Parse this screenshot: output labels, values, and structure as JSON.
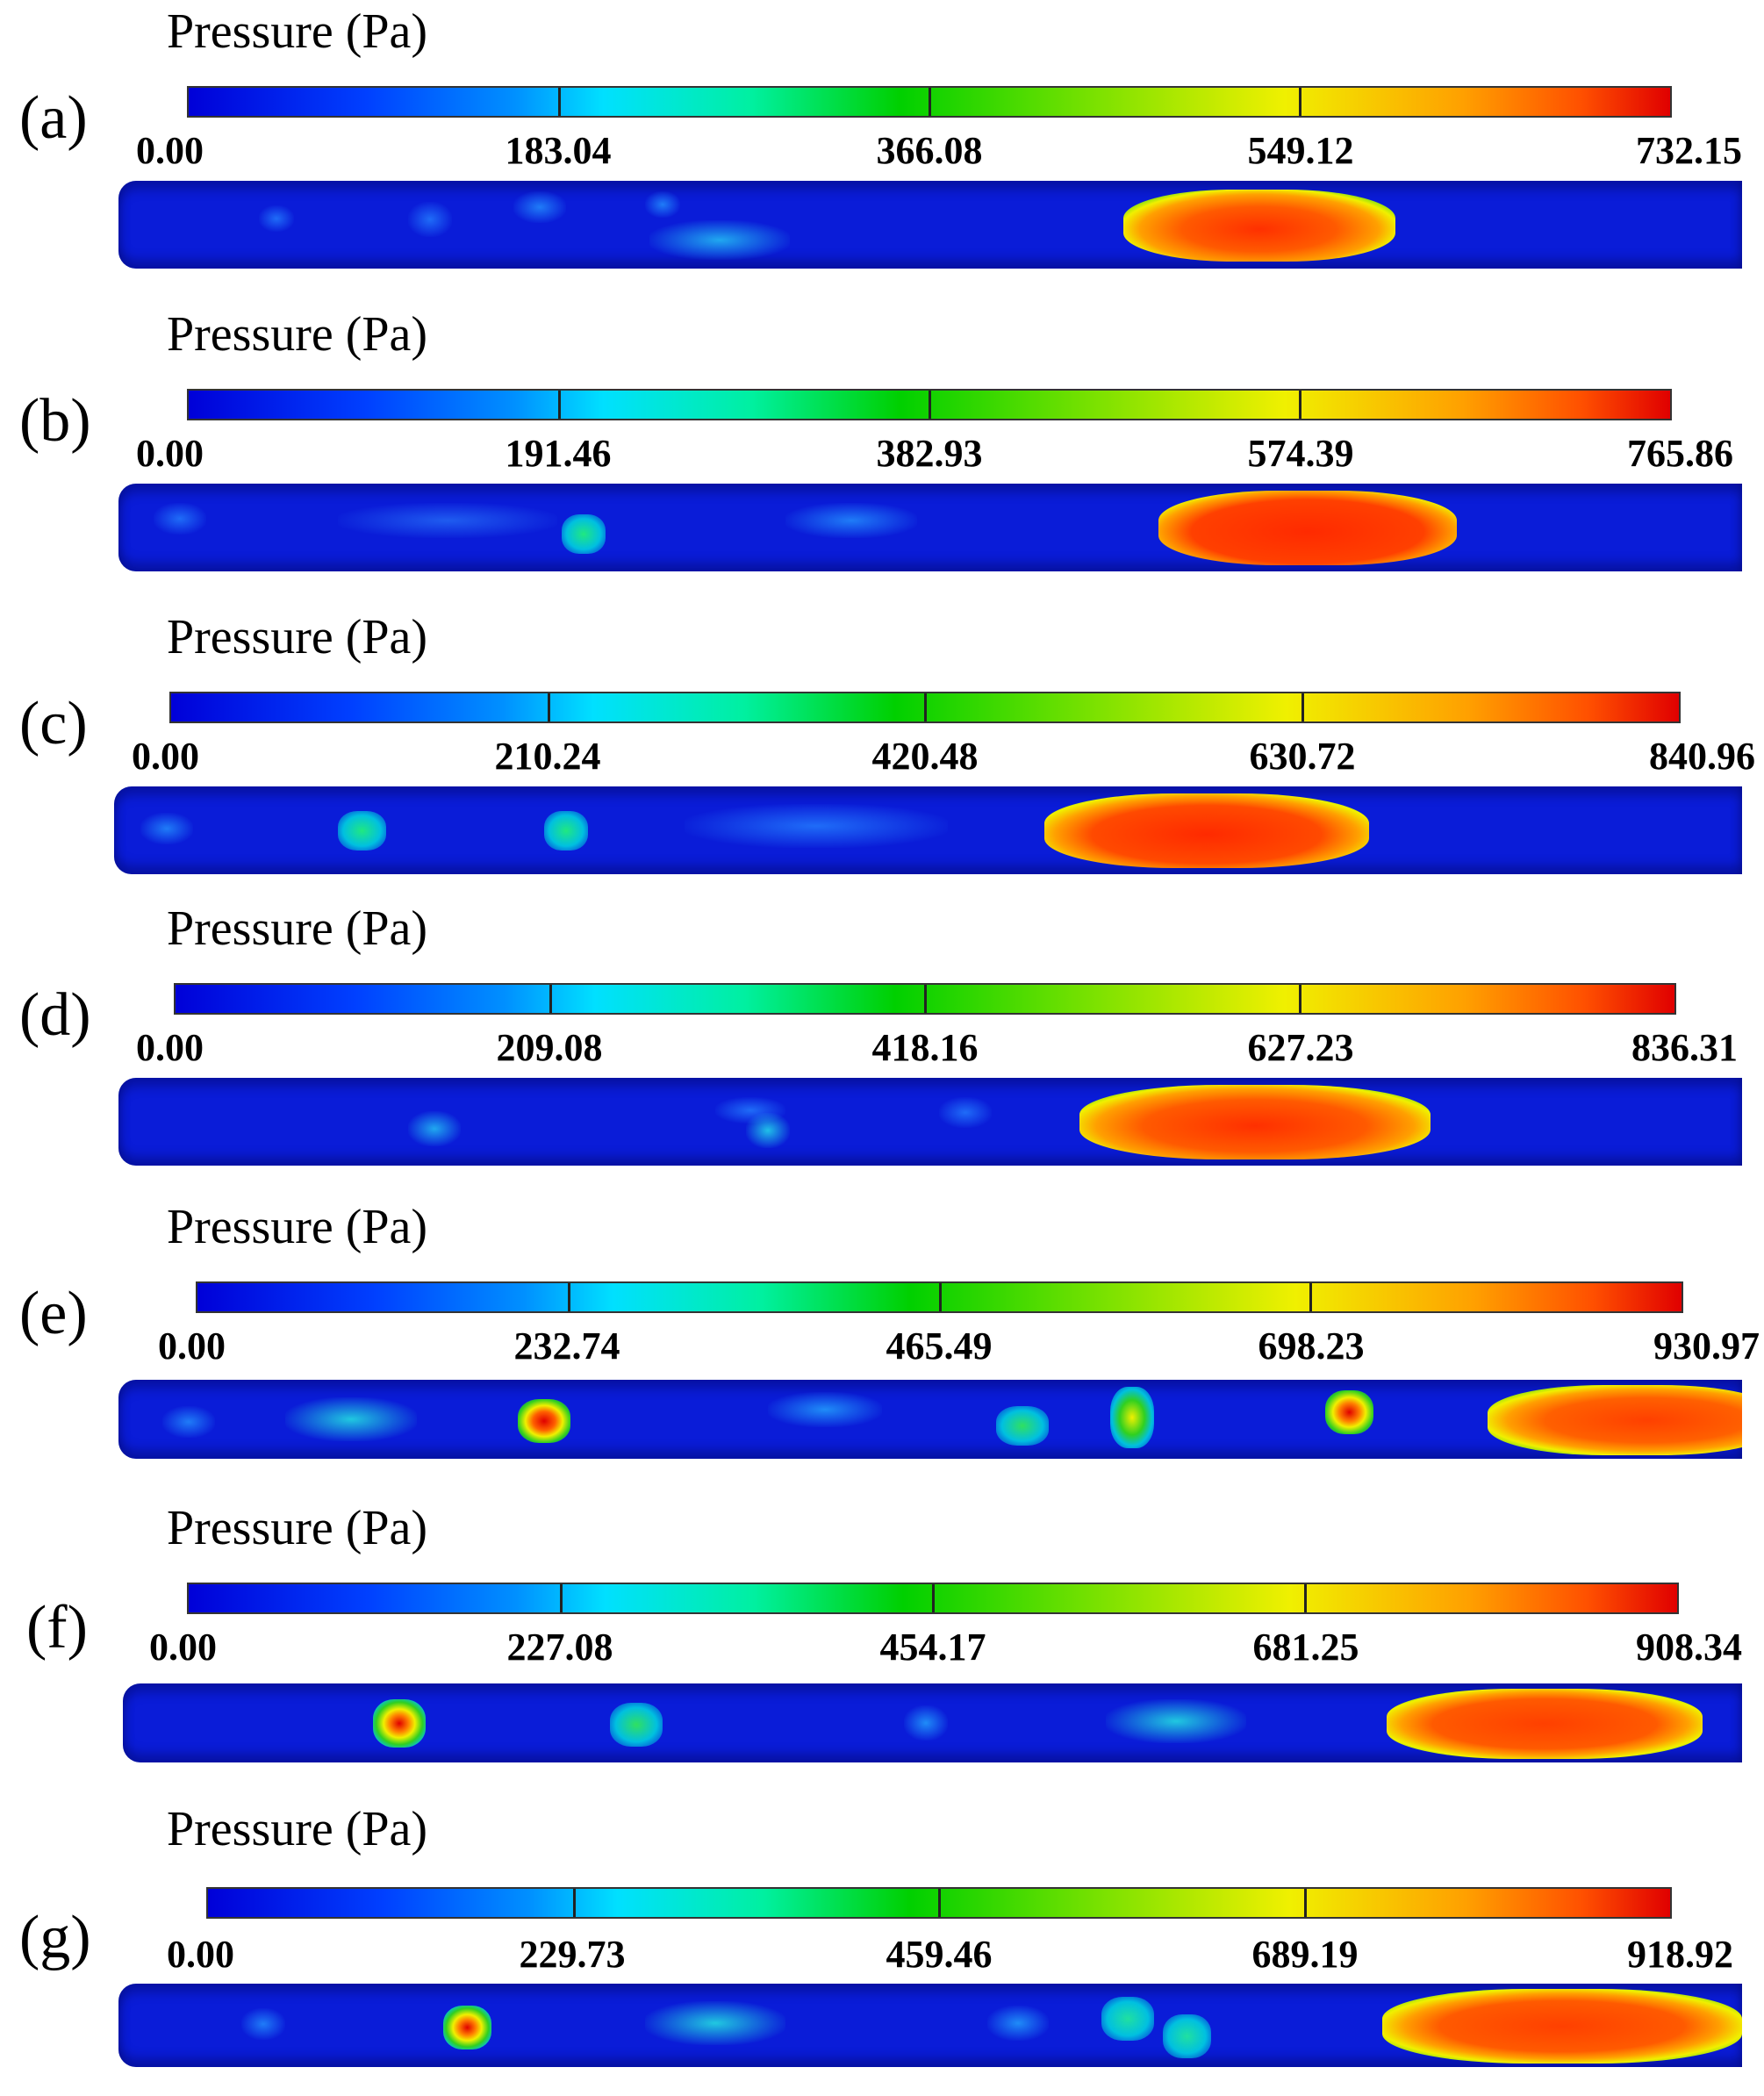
{
  "panels": [
    {
      "letter": "(a)",
      "title": "Pressure (Pa)",
      "ticks": [
        "0.00",
        "183.04",
        "366.08",
        "549.12",
        "732.15"
      ]
    },
    {
      "letter": "(b)",
      "title": "Pressure (Pa)",
      "ticks": [
        "0.00",
        "191.46",
        "382.93",
        "574.39",
        "765.86"
      ]
    },
    {
      "letter": "(c)",
      "title": "Pressure (Pa)",
      "ticks": [
        "0.00",
        "210.24",
        "420.48",
        "630.72",
        "840.96"
      ]
    },
    {
      "letter": "(d)",
      "title": "Pressure (Pa)",
      "ticks": [
        "0.00",
        "209.08",
        "418.16",
        "627.23",
        "836.31"
      ]
    },
    {
      "letter": "(e)",
      "title": "Pressure (Pa)",
      "ticks": [
        "0.00",
        "232.74",
        "465.49",
        "698.23",
        "930.97"
      ]
    },
    {
      "letter": "(f)",
      "title": "Pressure (Pa)",
      "ticks": [
        "0.00",
        "227.08",
        "454.17",
        "681.25",
        "908.34"
      ]
    },
    {
      "letter": "(g)",
      "title": "Pressure (Pa)",
      "ticks": [
        "0.00",
        "229.73",
        "459.46",
        "689.19",
        "918.92"
      ]
    }
  ],
  "colors": {
    "low": "#0000d8",
    "mid": "#00d000",
    "high": "#e00000",
    "tube_base": "#0a1cd8"
  }
}
